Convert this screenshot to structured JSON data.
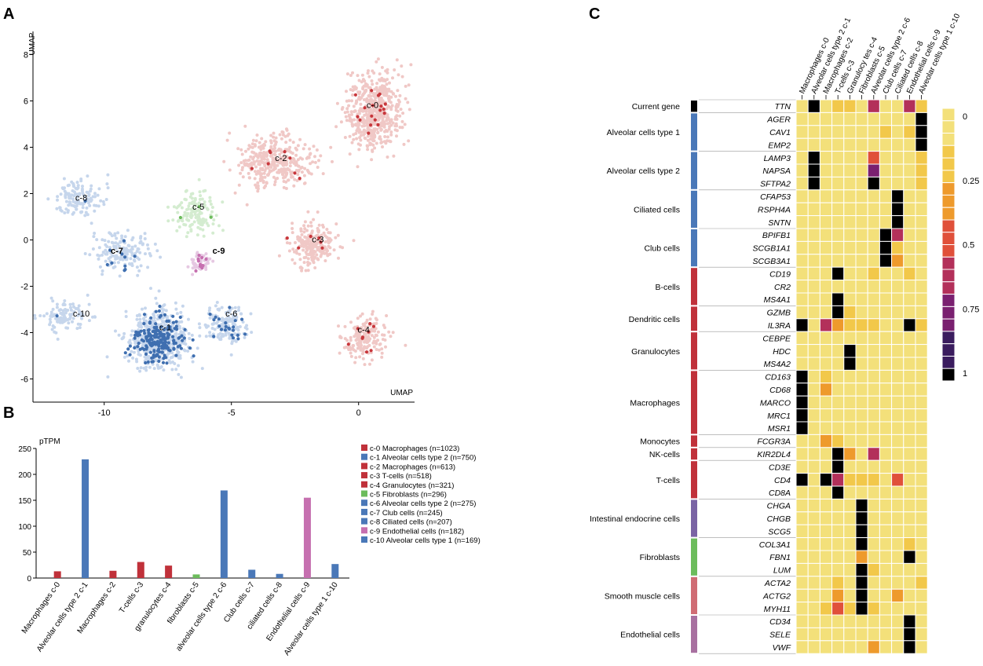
{
  "colors": {
    "red": "#c0313a",
    "blue": "#4a78b8",
    "green": "#6cbc5c",
    "purple": "#7a64a4",
    "pink": "#d06c74",
    "mauve": "#a870a0",
    "violet": "#c670b0",
    "pale_red": "#f0c8c6",
    "pale_blue": "#c6d6ec",
    "pale_green": "#d4ecd0",
    "dark_blue": "#3f6fb0",
    "dark_red": "#c8373c"
  },
  "panel_labels": {
    "a": "A",
    "b": "B",
    "c": "C"
  },
  "chart_data": [
    {
      "id": "A",
      "type": "scatter",
      "title": "",
      "xlabel": "UMAP",
      "ylabel": "UMAP",
      "xlim": [
        -12.8,
        2.2
      ],
      "ylim": [
        -7,
        9
      ],
      "xticks": [
        -10,
        -5,
        0
      ],
      "yticks": [
        -6,
        -4,
        -2,
        0,
        2,
        4,
        6,
        8
      ],
      "grid": false,
      "clusters": [
        {
          "label": "c-0",
          "lineage": "red",
          "center": [
            0.6,
            5.6
          ],
          "spread": [
            0.9,
            1.35
          ],
          "count": 520,
          "highlight": 18,
          "label_pos": [
            0.55,
            5.7
          ],
          "bold": false
        },
        {
          "label": "c-1",
          "lineage": "blue",
          "center": [
            -7.9,
            -4.3
          ],
          "spread": [
            1.0,
            1.0
          ],
          "count": 480,
          "highlight": 190,
          "label_pos": [
            -7.6,
            -3.9
          ],
          "bold": false
        },
        {
          "label": "c-2",
          "lineage": "red",
          "center": [
            -3.3,
            3.4
          ],
          "spread": [
            1.2,
            0.9
          ],
          "count": 360,
          "highlight": 8,
          "label_pos": [
            -3.05,
            3.4
          ],
          "bold": false
        },
        {
          "label": "c-3",
          "lineage": "red",
          "center": [
            -1.8,
            -0.2
          ],
          "spread": [
            0.8,
            0.8
          ],
          "count": 220,
          "highlight": 6,
          "label_pos": [
            -1.6,
            -0.1
          ],
          "bold": false
        },
        {
          "label": "c-4",
          "lineage": "red",
          "center": [
            0.2,
            -4.3
          ],
          "spread": [
            0.7,
            0.8
          ],
          "count": 180,
          "highlight": 9,
          "label_pos": [
            0.2,
            -4.0
          ],
          "bold": false
        },
        {
          "label": "c-5",
          "lineage": "green",
          "center": [
            -6.4,
            1.2
          ],
          "spread": [
            0.8,
            0.8
          ],
          "count": 140,
          "highlight": 3,
          "label_pos": [
            -6.3,
            1.3
          ],
          "bold": false
        },
        {
          "label": "c-6",
          "lineage": "blue",
          "center": [
            -5.2,
            -3.7
          ],
          "spread": [
            0.7,
            0.7
          ],
          "count": 160,
          "highlight": 22,
          "label_pos": [
            -5.0,
            -3.3
          ],
          "bold": false
        },
        {
          "label": "c-7",
          "lineage": "blue",
          "center": [
            -9.3,
            -0.5
          ],
          "spread": [
            0.9,
            0.7
          ],
          "count": 150,
          "highlight": 10,
          "label_pos": [
            -9.5,
            -0.6
          ],
          "bold": true
        },
        {
          "label": "c-8",
          "lineage": "blue",
          "center": [
            -11.0,
            1.8
          ],
          "spread": [
            0.8,
            0.7
          ],
          "count": 130,
          "highlight": 1,
          "label_pos": [
            -10.9,
            1.7
          ],
          "bold": false
        },
        {
          "label": "c-9",
          "lineage": "violet",
          "center": [
            -6.2,
            -1.0
          ],
          "spread": [
            0.35,
            0.35
          ],
          "count": 50,
          "highlight": 12,
          "label_pos": [
            -5.5,
            -0.6
          ],
          "bold": true
        },
        {
          "label": "c-10",
          "lineage": "blue",
          "center": [
            -11.6,
            -3.3
          ],
          "spread": [
            0.8,
            0.5
          ],
          "count": 110,
          "highlight": 1,
          "label_pos": [
            -10.9,
            -3.3
          ],
          "bold": false
        }
      ]
    },
    {
      "id": "B",
      "type": "bar",
      "title": "",
      "ylabel": "pTPM",
      "xlabel": "",
      "ylim": [
        0,
        250
      ],
      "yticks": [
        0,
        50,
        100,
        150,
        200,
        250
      ],
      "categories": [
        "Macrophages c-0",
        "Alveolar cells type 2 c-1",
        "Macrophages c-2",
        "T-cells c-3",
        "granulocytes c-4",
        "fibroblasts c-5",
        "alveolar cells type 2 c-6",
        "Club cells c-7",
        "ciliated cells c-8",
        "Endothelial cells c-9",
        "Alveolar cells type 1 c-10"
      ],
      "values": [
        13,
        229,
        14,
        31,
        24,
        7,
        169,
        16,
        8,
        155,
        27
      ],
      "bar_colors": [
        "red",
        "blue",
        "red",
        "red",
        "red",
        "green",
        "blue",
        "blue",
        "blue",
        "violet",
        "blue"
      ],
      "legend": [
        {
          "label": "c-0 Macrophages (n=1023)",
          "color": "red"
        },
        {
          "label": "c-1 Alveolar cells type 2 (n=750)",
          "color": "blue"
        },
        {
          "label": "c-2 Macrophages (n=613)",
          "color": "red"
        },
        {
          "label": "c-3 T-cells (n=518)",
          "color": "red"
        },
        {
          "label": "c-4 Granulocytes (n=321)",
          "color": "red"
        },
        {
          "label": "c-5 Fibroblasts (n=296)",
          "color": "green"
        },
        {
          "label": "c-6 Alveolar cells type 2 (n=275)",
          "color": "blue"
        },
        {
          "label": "c-7 Club cells (n=245)",
          "color": "blue"
        },
        {
          "label": "c-8 Ciliated cells (n=207)",
          "color": "blue"
        },
        {
          "label": "c-9 Endothelial cells (n=182)",
          "color": "violet"
        },
        {
          "label": "c-10 Alveolar cells type 1 (n=169)",
          "color": "blue"
        }
      ],
      "legend_position": "right"
    },
    {
      "id": "C",
      "type": "heatmap",
      "columns": [
        "Macrophages c-0",
        "Alveolar cells type 2 c-1",
        "Macrophages c-2",
        "T-cells c-3",
        "Granulocy tes c-4",
        "Fibroblasts c-5",
        "Alveolar cells type 2 c-6",
        "Club cells c-7",
        "Ciliated cells c-8",
        "Endothelial cells c-9",
        "Alveolar cells type 1 c-10"
      ],
      "genes": [
        "TTN",
        "AGER",
        "CAV1",
        "EMP2",
        "LAMP3",
        "NAPSA",
        "SFTPA2",
        "CFAP53",
        "RSPH4A",
        "SNTN",
        "BPIFB1",
        "SCGB1A1",
        "SCGB3A1",
        "CD19",
        "CR2",
        "MS4A1",
        "GZMB",
        "IL3RA",
        "CEBPE",
        "HDC",
        "MS4A2",
        "CD163",
        "CD68",
        "MARCO",
        "MRC1",
        "MSR1",
        "FCGR3A",
        "KIR2DL4",
        "CD3E",
        "CD4",
        "CD8A",
        "CHGA",
        "CHGB",
        "SCG5",
        "COL3A1",
        "FBN1",
        "LUM",
        "ACTA2",
        "ACTG2",
        "MYH11",
        "CD34",
        "SELE",
        "VWF"
      ],
      "groups": [
        {
          "label": "Current gene",
          "rows": 1,
          "color": "#000000"
        },
        {
          "label": "Alveolar cells type 1",
          "rows": 3,
          "color": "blue"
        },
        {
          "label": "Alveolar cells type 2",
          "rows": 3,
          "color": "blue"
        },
        {
          "label": "Ciliated cells",
          "rows": 3,
          "color": "blue"
        },
        {
          "label": "Club cells",
          "rows": 3,
          "color": "blue"
        },
        {
          "label": "B-cells",
          "rows": 3,
          "color": "red"
        },
        {
          "label": "Dendritic cells",
          "rows": 2,
          "color": "red"
        },
        {
          "label": "Granulocytes",
          "rows": 3,
          "color": "red"
        },
        {
          "label": "Macrophages",
          "rows": 5,
          "color": "red"
        },
        {
          "label": "Monocytes",
          "rows": 1,
          "color": "red"
        },
        {
          "label": "NK-cells",
          "rows": 1,
          "color": "red"
        },
        {
          "label": "T-cells",
          "rows": 3,
          "color": "red"
        },
        {
          "label": "Intestinal endocrine cells",
          "rows": 3,
          "color": "purple"
        },
        {
          "label": "Fibroblasts",
          "rows": 3,
          "color": "green"
        },
        {
          "label": "Smooth muscle cells",
          "rows": 3,
          "color": "pink"
        },
        {
          "label": "Endothelial cells",
          "rows": 3,
          "color": "mauve"
        }
      ],
      "values": [
        [
          0,
          1,
          0,
          0.15,
          0.25,
          0.05,
          0.7,
          0.05,
          0,
          0.7,
          0.15
        ],
        [
          0,
          0,
          0,
          0,
          0,
          0,
          0,
          0,
          0,
          0,
          1
        ],
        [
          0,
          0,
          0,
          0,
          0,
          0,
          0.1,
          0.15,
          0,
          0.25,
          1
        ],
        [
          0,
          0.1,
          0,
          0,
          0,
          0,
          0,
          0,
          0,
          0,
          1
        ],
        [
          0,
          1,
          0,
          0,
          0.1,
          0,
          0.5,
          0,
          0,
          0,
          0.2
        ],
        [
          0,
          1,
          0,
          0.1,
          0,
          0,
          0.8,
          0,
          0,
          0,
          0.15
        ],
        [
          0,
          1,
          0,
          0.1,
          0.1,
          0,
          1,
          0,
          0,
          0,
          0.15
        ],
        [
          0,
          0,
          0,
          0,
          0,
          0,
          0,
          0.1,
          1,
          0,
          0
        ],
        [
          0,
          0,
          0,
          0,
          0,
          0,
          0,
          0.1,
          1,
          0,
          0
        ],
        [
          0,
          0,
          0,
          0,
          0,
          0,
          0,
          0.05,
          1,
          0,
          0
        ],
        [
          0,
          0,
          0,
          0,
          0,
          0,
          0,
          1,
          0.7,
          0,
          0
        ],
        [
          0,
          0,
          0,
          0,
          0,
          0,
          0.1,
          1,
          0.25,
          0,
          0
        ],
        [
          0,
          0.1,
          0,
          0,
          0,
          0,
          0.1,
          1,
          0.3,
          0,
          0
        ],
        [
          0,
          0,
          0,
          1,
          0,
          0,
          0.15,
          0,
          0,
          0.15,
          0
        ],
        [
          0,
          0,
          0,
          0,
          0,
          0,
          0.1,
          0,
          0,
          0,
          0
        ],
        [
          0,
          0,
          0,
          1,
          0,
          0,
          0.1,
          0,
          0,
          0,
          0
        ],
        [
          0,
          0,
          0.1,
          1,
          0.15,
          0,
          0.1,
          0,
          0,
          0,
          0
        ],
        [
          1,
          0,
          0.6,
          0.4,
          0.2,
          0.15,
          0.15,
          0.1,
          0,
          1,
          0.15
        ],
        [
          0,
          0,
          0,
          0,
          0,
          0,
          0,
          0,
          0,
          0,
          0
        ],
        [
          0,
          0,
          0,
          0,
          1,
          0,
          0.1,
          0,
          0,
          0,
          0
        ],
        [
          0,
          0,
          0,
          0,
          1,
          0,
          0.1,
          0,
          0,
          0,
          0
        ],
        [
          1,
          0,
          0.25,
          0,
          0,
          0,
          0,
          0,
          0,
          0,
          0
        ],
        [
          1,
          0,
          0.35,
          0.1,
          0.1,
          0,
          0.1,
          0,
          0,
          0,
          0
        ],
        [
          1,
          0,
          0,
          0,
          0,
          0,
          0,
          0,
          0,
          0,
          0
        ],
        [
          1,
          0,
          0.1,
          0,
          0,
          0,
          0.1,
          0,
          0,
          0.1,
          0
        ],
        [
          1,
          0,
          0,
          0,
          0,
          0,
          0.05,
          0,
          0,
          0,
          0
        ],
        [
          0,
          0,
          0.35,
          0.2,
          0.05,
          0,
          0.1,
          0,
          0,
          0,
          0
        ],
        [
          0,
          0,
          0,
          1,
          0.3,
          0,
          0.7,
          0,
          0,
          0,
          0
        ],
        [
          0,
          0,
          0,
          1,
          0.1,
          0,
          0.1,
          0,
          0,
          0,
          0
        ],
        [
          1,
          0,
          1,
          0.7,
          0.2,
          0.15,
          0.2,
          0,
          0.45,
          0,
          0
        ],
        [
          0,
          0,
          0,
          1,
          0.1,
          0,
          0.05,
          0,
          0,
          0,
          0
        ],
        [
          0,
          0,
          0,
          0,
          0,
          1,
          0,
          0,
          0,
          0,
          0
        ],
        [
          0,
          0,
          0.1,
          0,
          0,
          1,
          0.1,
          0,
          0.1,
          0.05,
          0
        ],
        [
          0,
          0,
          0.1,
          0,
          0.1,
          1,
          0,
          0,
          0,
          0,
          0
        ],
        [
          0,
          0,
          0,
          0,
          0,
          1,
          0.1,
          0,
          0,
          0.15,
          0
        ],
        [
          0,
          0,
          0.1,
          0,
          0,
          0.4,
          0.1,
          0,
          0,
          1,
          0
        ],
        [
          0,
          0,
          0.1,
          0,
          0.1,
          1,
          0.2,
          0,
          0,
          0.1,
          0
        ],
        [
          0,
          0,
          0,
          0.2,
          0,
          1,
          0.1,
          0,
          0.1,
          0.1,
          0.15
        ],
        [
          0,
          0,
          0,
          0.35,
          0,
          1,
          0.1,
          0,
          0.3,
          0,
          0
        ],
        [
          0,
          0,
          0.15,
          0.5,
          0.15,
          1,
          0.2,
          0,
          0.1,
          0.1,
          0
        ],
        [
          0,
          0,
          0,
          0,
          0,
          0.1,
          0.1,
          0,
          0,
          1,
          0
        ],
        [
          0,
          0,
          0,
          0,
          0,
          0,
          0,
          0,
          0,
          1,
          0
        ],
        [
          0,
          0,
          0,
          0,
          0,
          0.1,
          0.3,
          0,
          0,
          1,
          0.1
        ]
      ],
      "color_scale": {
        "ticks": [
          0,
          0.25,
          0.5,
          0.75,
          1
        ],
        "tick_labels": [
          "0",
          "0.25",
          "0.5",
          "0.75",
          "1"
        ],
        "stops": [
          "#f3e07a",
          "#f2c84a",
          "#ee9a2c",
          "#e0503a",
          "#b3305a",
          "#7a2070",
          "#3a1c5e",
          "#000000"
        ]
      }
    }
  ]
}
